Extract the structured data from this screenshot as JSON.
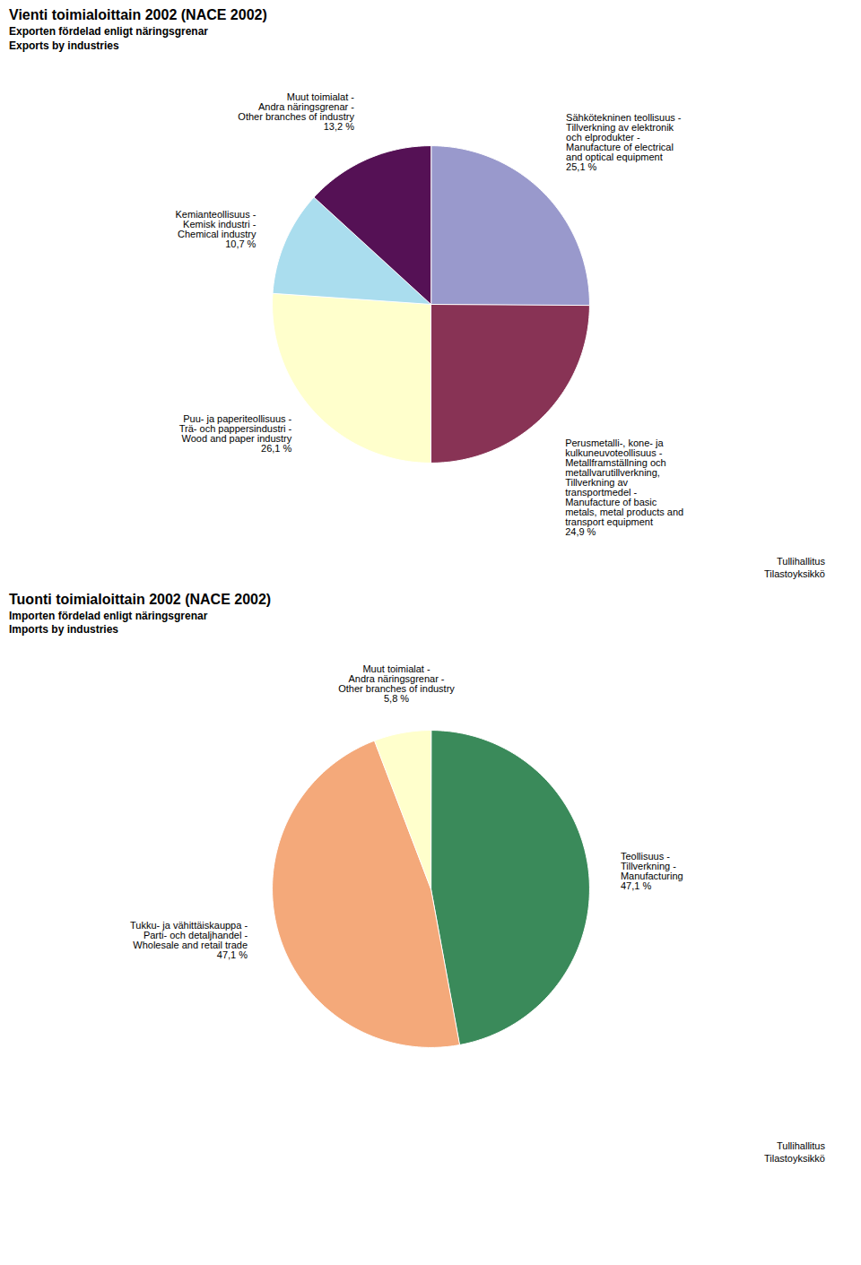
{
  "chart_data": [
    {
      "type": "pie",
      "title": "Vienti toimialoittain 2002 (NACE 2002)",
      "subtitle": "Exporten fördelad enligt näringsgrenar\nExports by industries",
      "categories": [
        "Sähkötekninen teollisuus -\nTillverkning av elektronik\noch elprodukter -\nManufacture of electrical\nand optical equipment",
        "Perusmetalli-, kone- ja\nkulkuneuvoteollisuus -\nMetallframställning och\nmetallvarutillverkning,\nTillverkning av\ntransportmedel -\nManufacture of basic\nmetals, metal products and\ntransport equipment",
        "Puu- ja paperiteollisuus -\nTrä- och pappersindustri -\nWood and paper industry",
        "Kemianteollisuus -\nKemisk industri -\nChemical industry",
        "Muut toimialat -\nAndra näringsgrenar -\nOther branches of industry"
      ],
      "values": [
        25.1,
        24.9,
        26.1,
        10.7,
        13.2
      ],
      "value_labels": [
        "25,1 %",
        "24,9 %",
        "26,1 %",
        "10,7 %",
        "13,2 %"
      ],
      "data_labels": true,
      "colors": [
        "#9999cc",
        "#883355",
        "#ffffcc",
        "#aaddee",
        "#551155"
      ],
      "annotations": [
        "Tullihallitus\nTilastoyksikkö"
      ]
    },
    {
      "type": "pie",
      "title": "Tuonti toimialoittain 2002 (NACE 2002)",
      "subtitle": "Importen fördelad enligt näringsgrenar\nImports by industries",
      "categories": [
        "Teollisuus -\nTillverkning -\nManufacturing",
        "Tukku- ja vähittäiskauppa -\nParti- och detaljhandel -\nWholesale and retail trade",
        "Muut toimialat -\nAndra näringsgrenar -\nOther branches of industry"
      ],
      "values": [
        47.1,
        47.1,
        5.8
      ],
      "value_labels": [
        "47,1 %",
        "47,1 %",
        "5,8 %"
      ],
      "data_labels": true,
      "colors": [
        "#3a8a5a",
        "#f4a97a",
        "#ffffcc"
      ],
      "annotations": [
        "Tullihallitus\nTilastoyksikkö"
      ]
    }
  ]
}
